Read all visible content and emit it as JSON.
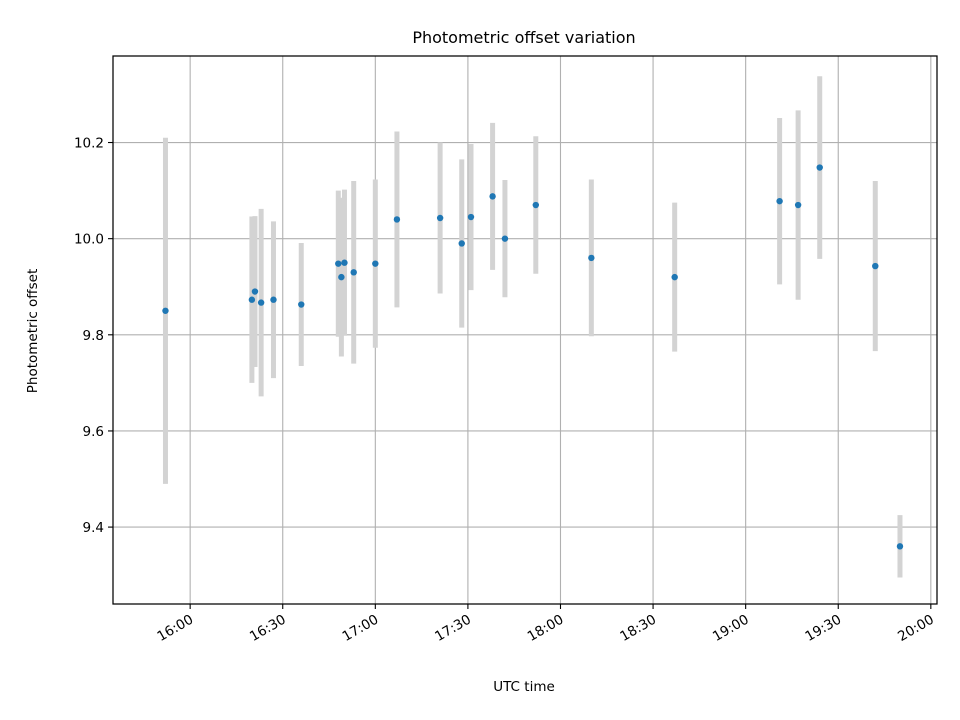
{
  "chart_data": {
    "type": "scatter",
    "title": "Photometric offset variation",
    "xlabel": "UTC time",
    "ylabel": "Photometric offset",
    "x_unit": "UTC time",
    "xlim": [
      "15:35",
      "20:02"
    ],
    "ylim": [
      9.24,
      10.38
    ],
    "x_ticks": [
      "16:00",
      "16:30",
      "17:00",
      "17:30",
      "18:00",
      "18:30",
      "19:00",
      "19:30",
      "20:00"
    ],
    "y_ticks": [
      9.4,
      9.6,
      9.8,
      10.0,
      10.2
    ],
    "grid": true,
    "colors": {
      "point": "#1f77b4",
      "errorbar": "#d3d3d3",
      "grid": "#b0b0b0"
    },
    "points": [
      {
        "x": "15:52",
        "y": 9.85,
        "yerr": 0.36
      },
      {
        "x": "16:20",
        "y": 9.873,
        "yerr": 0.173
      },
      {
        "x": "16:21",
        "y": 9.89,
        "yerr": 0.157
      },
      {
        "x": "16:23",
        "y": 9.867,
        "yerr": 0.195
      },
      {
        "x": "16:27",
        "y": 9.873,
        "yerr": 0.163
      },
      {
        "x": "16:36",
        "y": 9.863,
        "yerr": 0.128
      },
      {
        "x": "16:48",
        "y": 9.948,
        "yerr": 0.152
      },
      {
        "x": "16:49",
        "y": 9.92,
        "yerr": 0.165
      },
      {
        "x": "16:50",
        "y": 9.95,
        "yerr": 0.152
      },
      {
        "x": "16:53",
        "y": 9.93,
        "yerr": 0.19
      },
      {
        "x": "17:00",
        "y": 9.948,
        "yerr": 0.175
      },
      {
        "x": "17:07",
        "y": 10.04,
        "yerr": 0.183
      },
      {
        "x": "17:21",
        "y": 10.043,
        "yerr": 0.157
      },
      {
        "x": "17:28",
        "y": 9.99,
        "yerr": 0.175
      },
      {
        "x": "17:31",
        "y": 10.045,
        "yerr": 0.152
      },
      {
        "x": "17:38",
        "y": 10.088,
        "yerr": 0.153
      },
      {
        "x": "17:42",
        "y": 10.0,
        "yerr": 0.122
      },
      {
        "x": "17:52",
        "y": 10.07,
        "yerr": 0.143
      },
      {
        "x": "18:10",
        "y": 9.96,
        "yerr": 0.163
      },
      {
        "x": "18:37",
        "y": 9.92,
        "yerr": 0.155
      },
      {
        "x": "19:11",
        "y": 10.078,
        "yerr": 0.173
      },
      {
        "x": "19:17",
        "y": 10.07,
        "yerr": 0.197
      },
      {
        "x": "19:24",
        "y": 10.148,
        "yerr": 0.19
      },
      {
        "x": "19:42",
        "y": 9.943,
        "yerr": 0.177
      },
      {
        "x": "19:50",
        "y": 9.36,
        "yerr": 0.065
      }
    ]
  }
}
